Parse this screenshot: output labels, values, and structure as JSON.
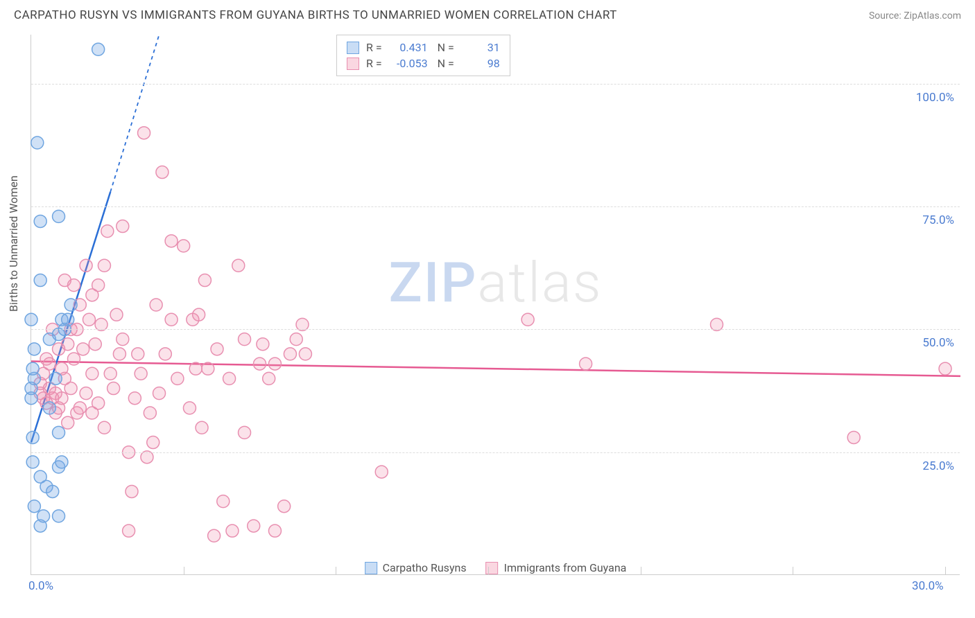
{
  "header": {
    "title": "CARPATHO RUSYN VS IMMIGRANTS FROM GUYANA BIRTHS TO UNMARRIED WOMEN CORRELATION CHART",
    "source": "Source: ZipAtlas.com"
  },
  "axes": {
    "ylabel": "Births to Unmarried Women",
    "yticks": [
      {
        "v": 25,
        "label": "25.0%"
      },
      {
        "v": 50,
        "label": "50.0%"
      },
      {
        "v": 75,
        "label": "75.0%"
      },
      {
        "v": 100,
        "label": "100.0%"
      }
    ],
    "xticks": [
      {
        "v": 0,
        "label": "0.0%"
      },
      {
        "v": 30,
        "label": "30.0%"
      }
    ],
    "xlim": [
      0,
      30.5
    ],
    "ylim": [
      0,
      110
    ],
    "x_minor_gridlines": [
      5,
      10,
      15,
      20,
      25,
      30
    ]
  },
  "watermark": {
    "zip": "ZIP",
    "atlas": "atlas"
  },
  "stats": [
    {
      "series": "blue",
      "R": "0.431",
      "N": "31"
    },
    {
      "series": "pink",
      "R": "-0.053",
      "N": "98"
    }
  ],
  "legend": [
    {
      "series": "blue",
      "label": "Carpatho Rusyns"
    },
    {
      "series": "pink",
      "label": "Immigrants from Guyana"
    }
  ],
  "series": {
    "blue": {
      "color_fill": "rgba(120,170,230,0.35)",
      "color_stroke": "#6fa5e0",
      "trend_color": "#2b6fd6",
      "trend": {
        "x1": 0,
        "y1": 27,
        "x2": 2.6,
        "y2": 78
      },
      "trend_extrapolate": {
        "x1": 2.6,
        "y1": 78,
        "x2": 4.2,
        "y2": 110
      },
      "points": [
        [
          0.05,
          23
        ],
        [
          0.05,
          28
        ],
        [
          0.0,
          36
        ],
        [
          0.0,
          38
        ],
        [
          0.1,
          40
        ],
        [
          0.05,
          42
        ],
        [
          0.1,
          46
        ],
        [
          0.3,
          72
        ],
        [
          0.9,
          73
        ],
        [
          0.2,
          88
        ],
        [
          2.2,
          107
        ],
        [
          0.3,
          20
        ],
        [
          0.5,
          18
        ],
        [
          0.7,
          17
        ],
        [
          0.9,
          22
        ],
        [
          1.0,
          23
        ],
        [
          0.9,
          29
        ],
        [
          0.6,
          34
        ],
        [
          0.8,
          40
        ],
        [
          0.6,
          48
        ],
        [
          0.9,
          49
        ],
        [
          1.0,
          52
        ],
        [
          1.1,
          50
        ],
        [
          1.2,
          52
        ],
        [
          0.3,
          60
        ],
        [
          0.0,
          52
        ],
        [
          0.1,
          14
        ],
        [
          0.3,
          10
        ],
        [
          0.4,
          12
        ],
        [
          0.9,
          12
        ],
        [
          1.3,
          55
        ]
      ]
    },
    "pink": {
      "color_fill": "rgba(240,140,170,0.25)",
      "color_stroke": "#e88fb0",
      "trend_color": "#e65a92",
      "trend": {
        "x1": 0,
        "y1": 43.5,
        "x2": 30.5,
        "y2": 40.5
      },
      "points": [
        [
          0.3,
          37
        ],
        [
          0.3,
          39
        ],
        [
          0.4,
          41
        ],
        [
          0.4,
          36
        ],
        [
          0.5,
          35
        ],
        [
          0.5,
          44
        ],
        [
          0.6,
          43
        ],
        [
          0.6,
          38
        ],
        [
          0.7,
          36
        ],
        [
          0.7,
          50
        ],
        [
          0.8,
          37
        ],
        [
          0.8,
          33
        ],
        [
          0.9,
          34
        ],
        [
          0.9,
          46
        ],
        [
          1.0,
          36
        ],
        [
          1.0,
          42
        ],
        [
          1.1,
          40
        ],
        [
          1.2,
          31
        ],
        [
          1.2,
          47
        ],
        [
          1.3,
          50
        ],
        [
          1.3,
          38
        ],
        [
          1.4,
          44
        ],
        [
          1.5,
          50
        ],
        [
          1.5,
          33
        ],
        [
          1.6,
          34
        ],
        [
          1.7,
          46
        ],
        [
          1.8,
          63
        ],
        [
          1.8,
          37
        ],
        [
          1.9,
          52
        ],
        [
          2.0,
          41
        ],
        [
          2.0,
          33
        ],
        [
          2.0,
          57
        ],
        [
          2.1,
          47
        ],
        [
          2.2,
          35
        ],
        [
          2.3,
          51
        ],
        [
          2.4,
          30
        ],
        [
          2.5,
          70
        ],
        [
          2.6,
          41
        ],
        [
          2.7,
          38
        ],
        [
          2.8,
          53
        ],
        [
          2.9,
          45
        ],
        [
          3.0,
          71
        ],
        [
          3.0,
          48
        ],
        [
          3.2,
          25
        ],
        [
          3.2,
          9
        ],
        [
          3.3,
          17
        ],
        [
          3.4,
          36
        ],
        [
          3.6,
          41
        ],
        [
          3.7,
          90
        ],
        [
          3.8,
          24
        ],
        [
          3.9,
          33
        ],
        [
          4.0,
          27
        ],
        [
          4.1,
          55
        ],
        [
          4.3,
          82
        ],
        [
          4.4,
          45
        ],
        [
          4.6,
          52
        ],
        [
          4.6,
          68
        ],
        [
          4.8,
          40
        ],
        [
          5.0,
          67
        ],
        [
          5.2,
          34
        ],
        [
          5.3,
          52
        ],
        [
          5.4,
          42
        ],
        [
          5.6,
          30
        ],
        [
          5.7,
          60
        ],
        [
          5.8,
          42
        ],
        [
          6.0,
          8
        ],
        [
          6.1,
          46
        ],
        [
          6.3,
          15
        ],
        [
          6.5,
          40
        ],
        [
          6.6,
          9
        ],
        [
          6.8,
          63
        ],
        [
          7.0,
          29
        ],
        [
          7.0,
          48
        ],
        [
          7.3,
          10
        ],
        [
          7.5,
          43
        ],
        [
          7.6,
          47
        ],
        [
          7.8,
          40
        ],
        [
          8.0,
          43
        ],
        [
          8.0,
          9
        ],
        [
          8.3,
          14
        ],
        [
          8.5,
          45
        ],
        [
          8.7,
          48
        ],
        [
          8.9,
          51
        ],
        [
          9.0,
          45
        ],
        [
          11.5,
          21
        ],
        [
          16.3,
          52
        ],
        [
          18.2,
          43
        ],
        [
          22.5,
          51
        ],
        [
          27.0,
          28
        ],
        [
          30.0,
          42
        ],
        [
          1.1,
          60
        ],
        [
          1.4,
          59
        ],
        [
          1.6,
          55
        ],
        [
          2.2,
          59
        ],
        [
          2.4,
          63
        ],
        [
          5.5,
          53
        ],
        [
          4.2,
          37
        ],
        [
          3.5,
          45
        ]
      ]
    }
  }
}
